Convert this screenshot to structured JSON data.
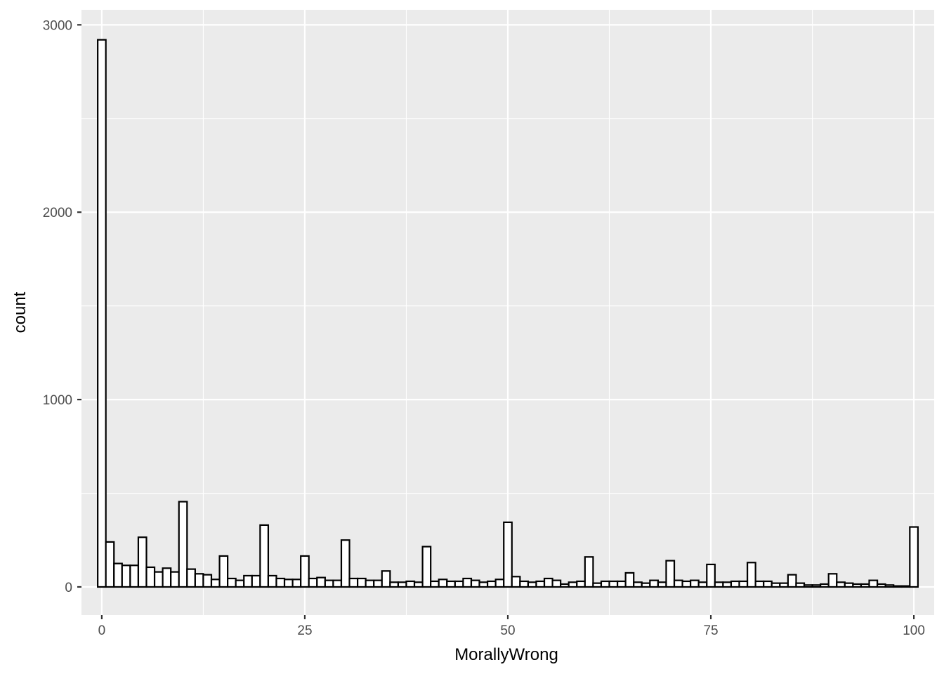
{
  "chart_data": {
    "type": "bar",
    "subtype": "histogram",
    "title": "",
    "xlabel": "MorallyWrong",
    "ylabel": "count",
    "xlim": [
      -2.5,
      102.5
    ],
    "ylim": [
      -150,
      3080
    ],
    "x_ticks": [
      0,
      25,
      50,
      75,
      100
    ],
    "x_tick_labels": [
      "0",
      "25",
      "50",
      "75",
      "100"
    ],
    "y_ticks": [
      0,
      1000,
      2000,
      3000
    ],
    "y_tick_labels": [
      "0",
      "1000",
      "2000",
      "3000"
    ],
    "x_minor_ticks": [
      12.5,
      37.5,
      62.5,
      87.5
    ],
    "y_minor_ticks": [
      500,
      1500,
      2500
    ],
    "grid": true,
    "legend": "none",
    "bin_width": 1,
    "x": [
      0,
      1,
      2,
      3,
      4,
      5,
      6,
      7,
      8,
      9,
      10,
      11,
      12,
      13,
      14,
      15,
      16,
      17,
      18,
      19,
      20,
      21,
      22,
      23,
      24,
      25,
      26,
      27,
      28,
      29,
      30,
      31,
      32,
      33,
      34,
      35,
      36,
      37,
      38,
      39,
      40,
      41,
      42,
      43,
      44,
      45,
      46,
      47,
      48,
      49,
      50,
      51,
      52,
      53,
      54,
      55,
      56,
      57,
      58,
      59,
      60,
      61,
      62,
      63,
      64,
      65,
      66,
      67,
      68,
      69,
      70,
      71,
      72,
      73,
      74,
      75,
      76,
      77,
      78,
      79,
      80,
      81,
      82,
      83,
      84,
      85,
      86,
      87,
      88,
      89,
      90,
      91,
      92,
      93,
      94,
      95,
      96,
      97,
      98,
      99,
      100
    ],
    "values": [
      2920,
      240,
      125,
      115,
      115,
      265,
      105,
      80,
      100,
      80,
      455,
      95,
      70,
      65,
      40,
      165,
      45,
      35,
      60,
      60,
      330,
      60,
      45,
      40,
      40,
      165,
      45,
      50,
      35,
      35,
      250,
      45,
      45,
      35,
      35,
      85,
      25,
      25,
      30,
      25,
      215,
      30,
      40,
      30,
      30,
      45,
      35,
      25,
      30,
      40,
      345,
      55,
      30,
      25,
      30,
      45,
      35,
      15,
      25,
      30,
      160,
      20,
      30,
      30,
      30,
      75,
      25,
      20,
      35,
      25,
      140,
      35,
      30,
      35,
      25,
      120,
      25,
      25,
      30,
      30,
      130,
      30,
      30,
      20,
      20,
      65,
      20,
      10,
      10,
      15,
      70,
      25,
      20,
      15,
      15,
      35,
      15,
      10,
      5,
      5,
      320
    ],
    "colors": {
      "bar_fill": "#ffffff",
      "bar_stroke": "#000000",
      "panel_bg": "#ebebeb",
      "grid": "#ffffff"
    }
  }
}
